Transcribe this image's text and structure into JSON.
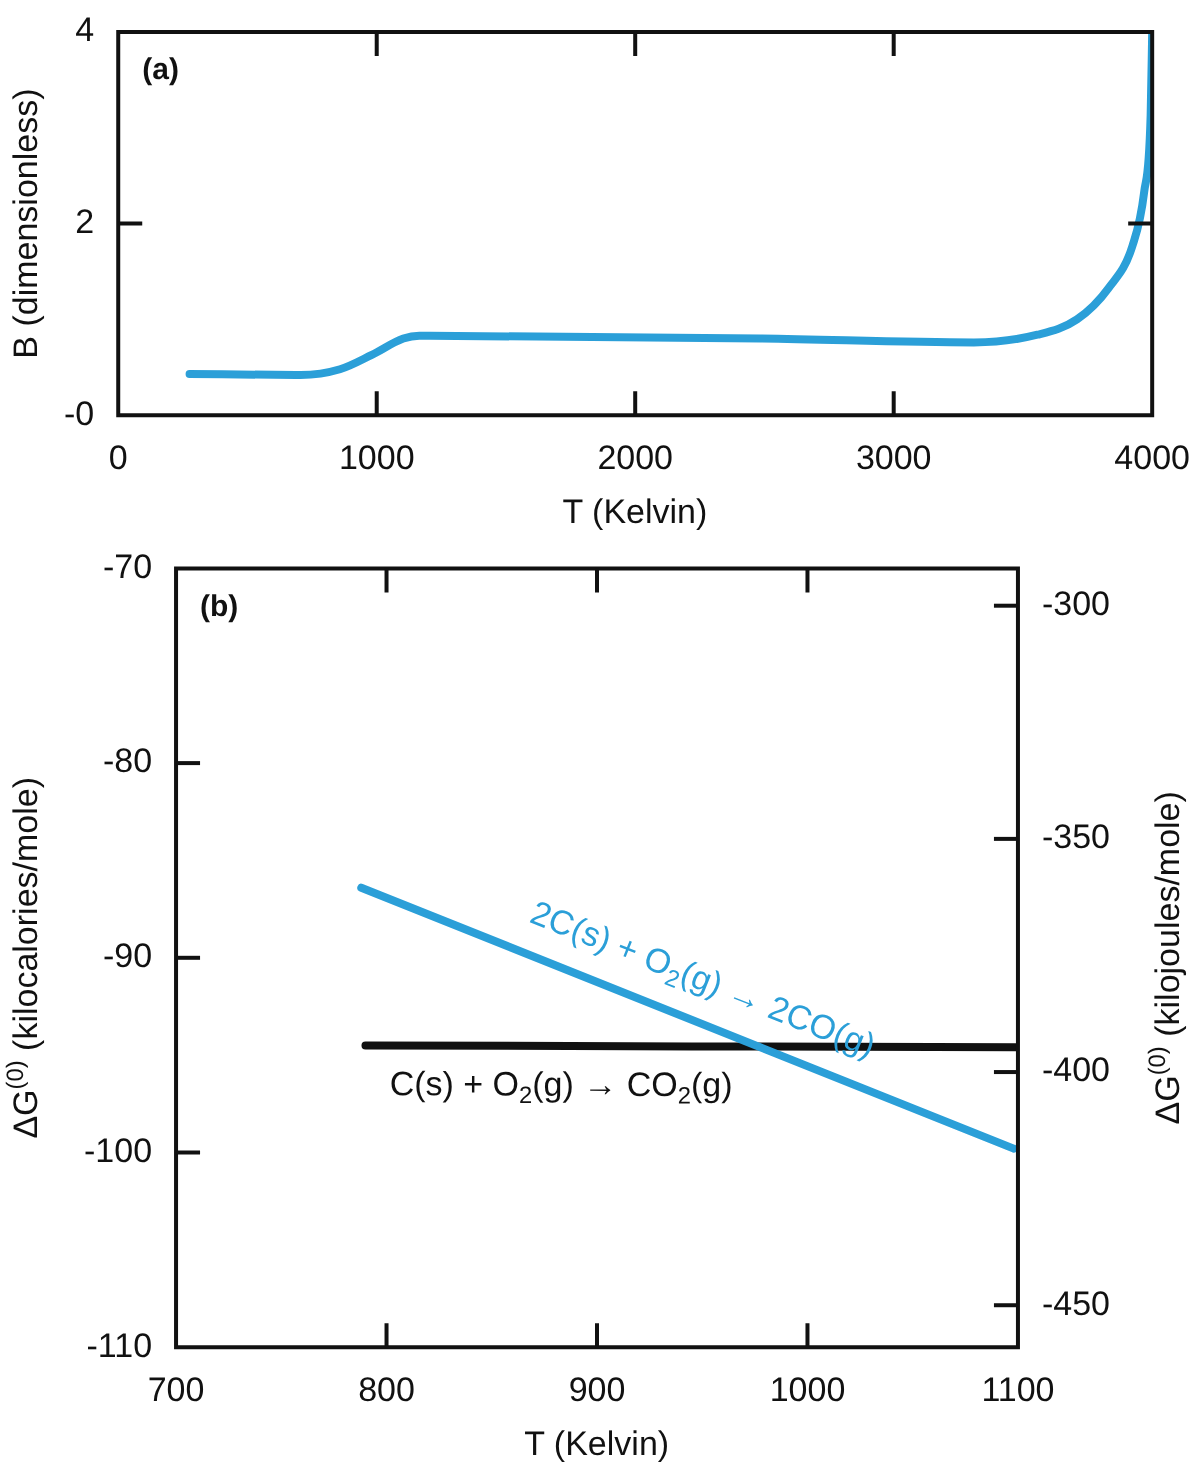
{
  "chart_data": [
    {
      "type": "line",
      "xlabel": "T (Kelvin)",
      "ylabel": "B (dimensionless)",
      "annotations": [
        "(a)"
      ],
      "series": [
        {
          "color": "#2b9fd8",
          "x": [
            276,
            705,
            858,
            981,
            1103,
            1165,
            2483,
            3310,
            3556,
            3709,
            3832,
            3924,
            3969,
            3994,
            4000
          ],
          "values": [
            0.43,
            0.42,
            0.48,
            0.63,
            0.8,
            0.83,
            0.8,
            0.76,
            0.84,
            1.0,
            1.33,
            1.77,
            2.33,
            3.13,
            4.0
          ]
        }
      ],
      "xlim": [
        0,
        4000
      ],
      "xticks": [
        0,
        1000,
        2000,
        3000,
        4000
      ],
      "ylim": [
        0,
        4
      ],
      "yticks": [
        {
          "value": 0,
          "label": "-0"
        },
        2,
        4
      ]
    },
    {
      "type": "line",
      "xlabel": "T (Kelvin)",
      "ylabel": "ΔG$^{(0)}$ (kilocalories/mole)",
      "y2label": "ΔG$^{(0)}$ (kilojoules/mole)",
      "annotations": [
        "(b)"
      ],
      "series": [
        {
          "name": "2C(s) + O$_{2}$(g) → 2CO(g)",
          "color": "#2b9fd8",
          "x": [
            788,
            1098
          ],
          "values": [
            -86.4,
            -99.8
          ]
        },
        {
          "name": "C(s) + O$_{2}$(g) → CO$_{2}$(g)",
          "color": "#111111",
          "x": [
            790,
            1100
          ],
          "values": [
            -94.5,
            -94.6
          ]
        }
      ],
      "xlim": [
        700,
        1100
      ],
      "xticks": [
        700,
        800,
        900,
        1000,
        1100
      ],
      "ylim": [
        -110,
        -70
      ],
      "yticks": [
        -110,
        -100,
        -90,
        -80,
        -70
      ],
      "y2lim": [
        -459,
        -292
      ],
      "y2ticks": [
        -450,
        -400,
        -350,
        -300
      ]
    }
  ]
}
